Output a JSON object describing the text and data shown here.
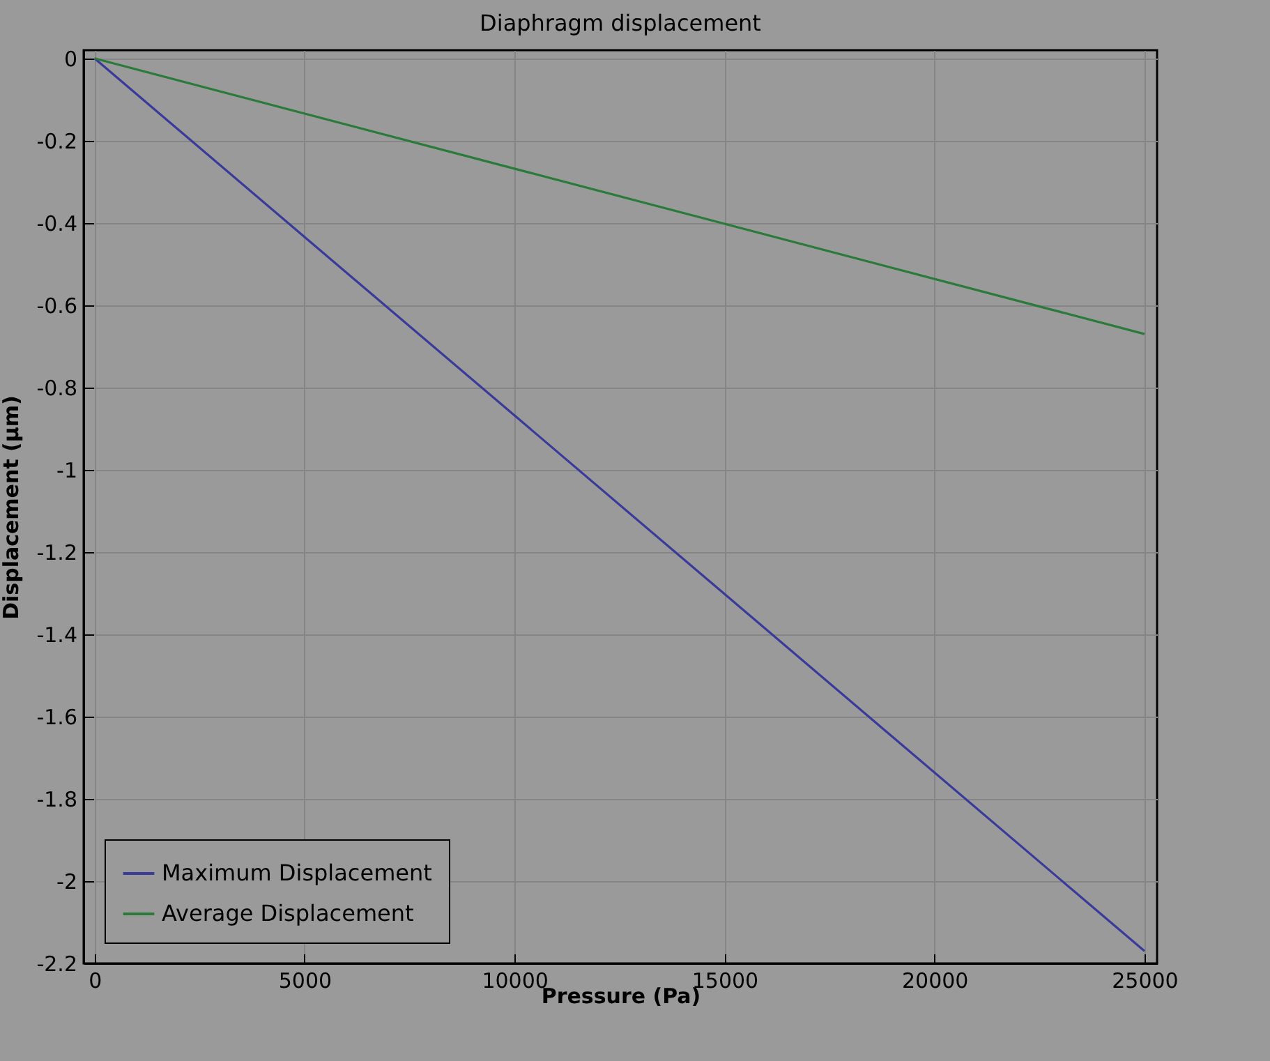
{
  "chart_data": {
    "type": "line",
    "title": "Diaphragm displacement",
    "xlabel": "Pressure (Pa)",
    "ylabel": "Displacement (µm)",
    "x": [
      0,
      25000
    ],
    "series": [
      {
        "name": "Maximum Displacement",
        "color": "#3a3a9a",
        "values": [
          0,
          -2.17
        ]
      },
      {
        "name": "Average Displacement",
        "color": "#2a7a3a",
        "values": [
          0,
          -0.67
        ]
      }
    ],
    "xlim": [
      -260,
      25300
    ],
    "ylim": [
      -2.2,
      0.02
    ],
    "xticks": [
      0,
      5000,
      10000,
      15000,
      20000,
      25000
    ],
    "yticks": [
      0,
      -0.2,
      -0.4,
      -0.6,
      -0.8,
      -1,
      -1.2,
      -1.4,
      -1.6,
      -1.8,
      -2,
      -2.2
    ],
    "grid": true,
    "legend": "bottom left",
    "line_style": "solid"
  }
}
